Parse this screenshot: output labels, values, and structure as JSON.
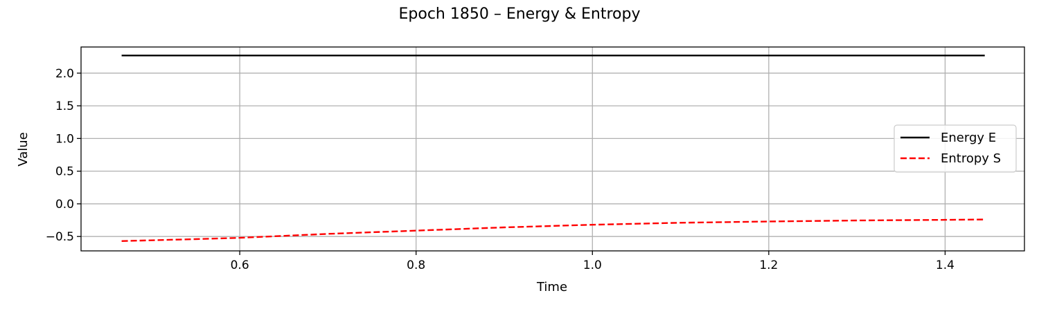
{
  "chart_data": {
    "type": "line",
    "title": "Epoch 1850 – Energy & Entropy",
    "xlabel": "Time",
    "ylabel": "Value",
    "xlim": [
      0.42,
      1.49
    ],
    "ylim": [
      -0.72,
      2.4
    ],
    "xticks": [
      0.6,
      0.8,
      1.0,
      1.2,
      1.4
    ],
    "xtick_labels": [
      "0.6",
      "0.8",
      "1.0",
      "1.2",
      "1.4"
    ],
    "yticks": [
      -0.5,
      0.0,
      0.5,
      1.0,
      1.5,
      2.0
    ],
    "ytick_labels": [
      "−0.5",
      "0.0",
      "0.5",
      "1.0",
      "1.5",
      "2.0"
    ],
    "grid": true,
    "legend_position": "center-right",
    "series": [
      {
        "name": "Energy E",
        "color": "#000000",
        "style": "solid",
        "x": [
          0.466,
          0.6,
          0.8,
          1.0,
          1.2,
          1.4,
          1.445
        ],
        "y": [
          2.27,
          2.27,
          2.27,
          2.27,
          2.27,
          2.27,
          2.27
        ]
      },
      {
        "name": "Entropy S",
        "color": "#ff0000",
        "style": "dashed",
        "x": [
          0.466,
          0.55,
          0.6,
          0.7,
          0.8,
          0.9,
          1.0,
          1.1,
          1.2,
          1.3,
          1.4,
          1.445
        ],
        "y": [
          -0.57,
          -0.54,
          -0.52,
          -0.46,
          -0.41,
          -0.36,
          -0.32,
          -0.29,
          -0.27,
          -0.255,
          -0.245,
          -0.24
        ]
      }
    ]
  }
}
